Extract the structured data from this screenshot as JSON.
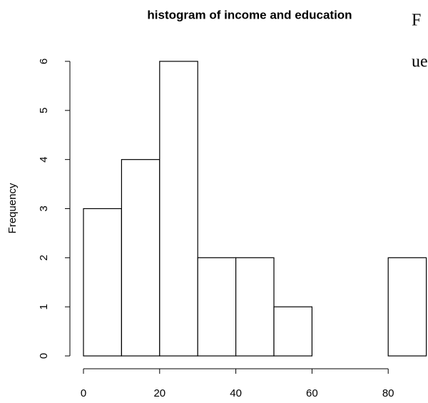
{
  "chart_data": {
    "type": "histogram",
    "title": "histogram of income and education",
    "ylabel": "Frequency",
    "bins": [
      0,
      10,
      20,
      30,
      40,
      50,
      60,
      70,
      80,
      90
    ],
    "values": [
      3,
      4,
      6,
      2,
      2,
      1,
      0,
      0,
      2
    ],
    "color": "#ffffff",
    "edgecolor": "#000000",
    "xlim": [
      0,
      90
    ],
    "xticks": [
      0,
      20,
      40,
      60,
      80
    ],
    "ylim": [
      0,
      6
    ],
    "yticks": [
      0,
      1,
      2,
      3,
      4,
      5,
      6
    ]
  },
  "side_text": [
    "F",
    "ue"
  ]
}
